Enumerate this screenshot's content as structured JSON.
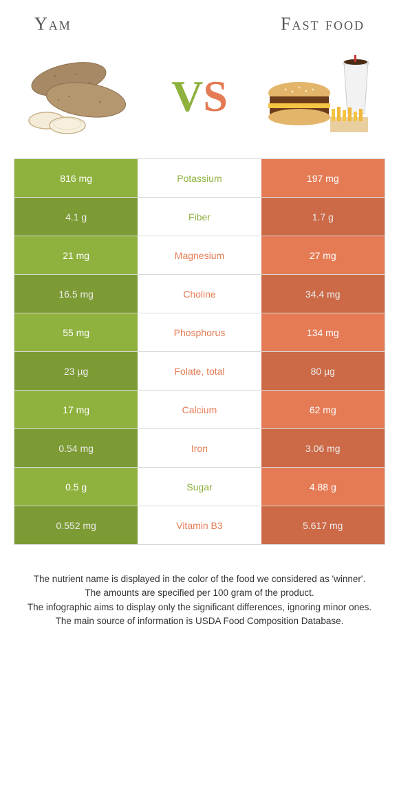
{
  "header": {
    "left_title": "Yam",
    "right_title": "Fast food"
  },
  "vs": {
    "v": "V",
    "s": "S"
  },
  "colors": {
    "left": "#8fb23e",
    "right": "#e47b54",
    "left_alt": "#86a738",
    "right_alt": "#db714b"
  },
  "rows": [
    {
      "left": "816 mg",
      "label": "Potassium",
      "right": "197 mg",
      "winner": "left"
    },
    {
      "left": "4.1 g",
      "label": "Fiber",
      "right": "1.7 g",
      "winner": "left"
    },
    {
      "left": "21 mg",
      "label": "Magnesium",
      "right": "27 mg",
      "winner": "right"
    },
    {
      "left": "16.5 mg",
      "label": "Choline",
      "right": "34.4 mg",
      "winner": "right"
    },
    {
      "left": "55 mg",
      "label": "Phosphorus",
      "right": "134 mg",
      "winner": "right"
    },
    {
      "left": "23 µg",
      "label": "Folate, total",
      "right": "80 µg",
      "winner": "right"
    },
    {
      "left": "17 mg",
      "label": "Calcium",
      "right": "62 mg",
      "winner": "right"
    },
    {
      "left": "0.54 mg",
      "label": "Iron",
      "right": "3.06 mg",
      "winner": "right"
    },
    {
      "left": "0.5 g",
      "label": "Sugar",
      "right": "4.88 g",
      "winner": "left"
    },
    {
      "left": "0.552 mg",
      "label": "Vitamin B3",
      "right": "5.617 mg",
      "winner": "right"
    }
  ],
  "footer": {
    "line1": "The nutrient name is displayed in the color of the food we considered as 'winner'.",
    "line2": "The amounts are specified per 100 gram of the product.",
    "line3": "The infographic aims to display only the significant differences, ignoring minor ones.",
    "line4": "The main source of information is USDA Food Composition Database."
  }
}
